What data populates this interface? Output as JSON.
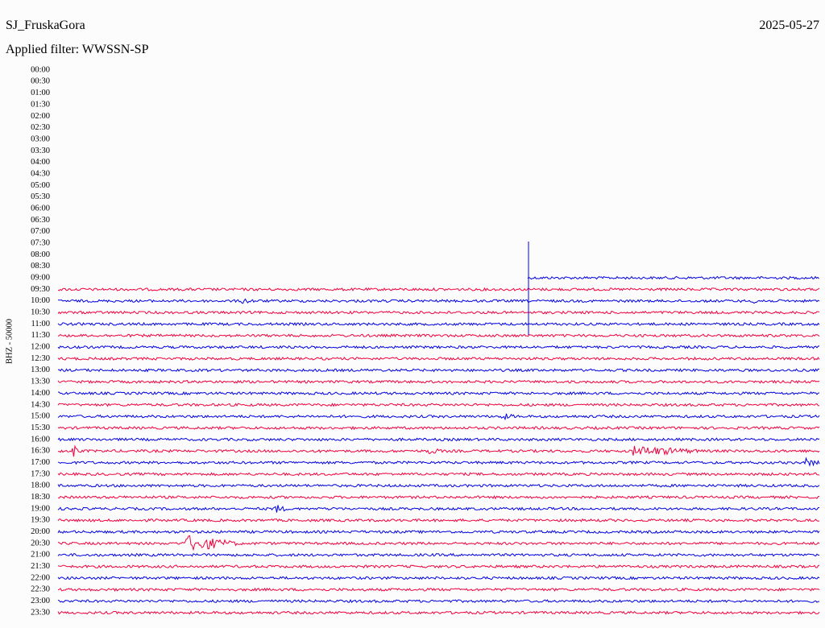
{
  "header": {
    "station": "SJ_FruskaGora",
    "date": "2025-05-27",
    "filter": "Applied filter: WWSSN-SP"
  },
  "axis": {
    "label": "BHZ - 50000",
    "times": [
      "00:00",
      "00:30",
      "01:00",
      "01:30",
      "02:00",
      "02:30",
      "03:00",
      "03:30",
      "04:00",
      "04:30",
      "05:00",
      "05:30",
      "06:00",
      "06:30",
      "07:00",
      "07:30",
      "08:00",
      "08:30",
      "09:00",
      "09:30",
      "10:00",
      "10:30",
      "11:00",
      "11:30",
      "12:00",
      "12:30",
      "13:00",
      "13:30",
      "14:00",
      "14:30",
      "15:00",
      "15:30",
      "16:00",
      "16:30",
      "17:00",
      "17:30",
      "18:00",
      "18:30",
      "19:00",
      "19:30",
      "20:00",
      "20:30",
      "21:00",
      "21:30",
      "22:00",
      "22:30",
      "23:00",
      "23:30"
    ]
  }
}
